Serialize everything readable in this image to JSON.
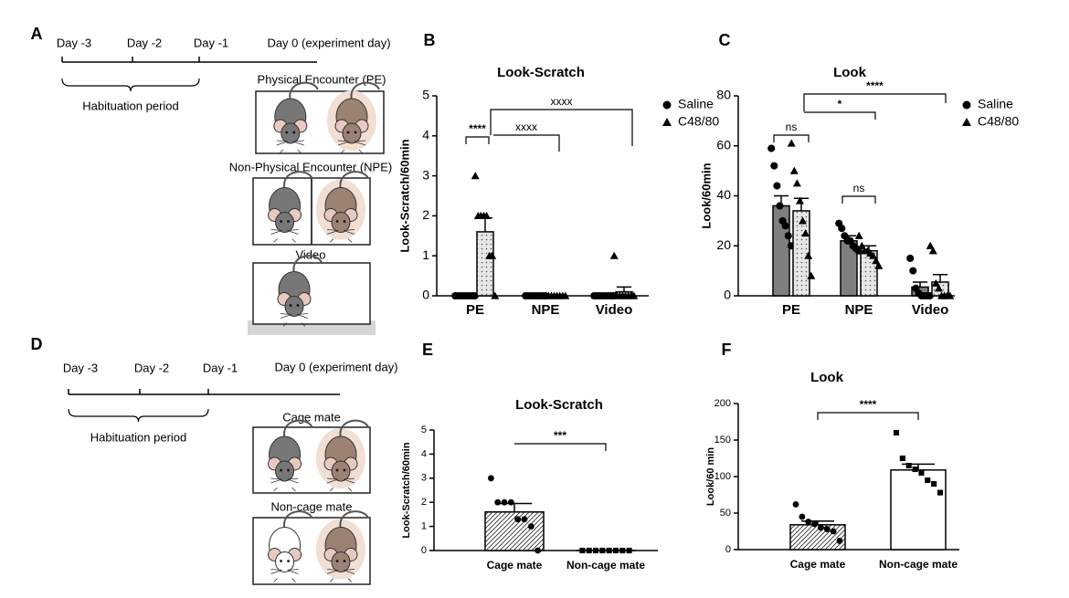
{
  "diagrams": [
    {
      "panel_label": "A",
      "days": [
        "Day -3",
        "Day -2",
        "Day -1"
      ],
      "day0": "Day 0 (experiment day)",
      "period": "Habituation period",
      "conditions": [
        "Physical Encounter (PE)",
        "Non-Physical Encounter (NPE)",
        "Video"
      ]
    },
    {
      "panel_label": "D",
      "days": [
        "Day -3",
        "Day -2",
        "Day -1"
      ],
      "day0": "Day 0 (experiment day)",
      "period": "Habituation period",
      "conditions": [
        "Cage mate",
        "Non-cage mate"
      ]
    }
  ],
  "chart_data": [
    {
      "type": "bar",
      "panel_label": "B",
      "title": "Look-Scratch",
      "ylabel": "Look-Scratch/60min",
      "categories": [
        "PE",
        "NPE",
        "Video"
      ],
      "ylim": [
        0,
        5
      ],
      "yticks": [
        0,
        1,
        2,
        3,
        4,
        5
      ],
      "series": [
        {
          "name": "Saline",
          "color": "#7f7f7f",
          "marker": "circle",
          "values": [
            0,
            0,
            0
          ],
          "errors": [
            0,
            0,
            0
          ],
          "points": [
            [
              0,
              0,
              0,
              0,
              0,
              0,
              0,
              0
            ],
            [
              0,
              0,
              0,
              0,
              0,
              0,
              0,
              0
            ],
            [
              0,
              0,
              0,
              0,
              0,
              0,
              0,
              0
            ]
          ]
        },
        {
          "name": "C48/80",
          "color": "#e6e6e6",
          "pattern": "dots",
          "marker": "triangle",
          "values": [
            1.6,
            0,
            0.1
          ],
          "errors": [
            0.35,
            0,
            0.12
          ],
          "points": [
            [
              3,
              2,
              2,
              2,
              2,
              1,
              1,
              0
            ],
            [
              0,
              0,
              0,
              0,
              0,
              0,
              0,
              0
            ],
            [
              1,
              0,
              0,
              0,
              0,
              0,
              0,
              0
            ]
          ]
        }
      ],
      "annotations": [
        "****",
        "xxxx",
        "xxxx"
      ]
    },
    {
      "type": "bar",
      "panel_label": "C",
      "title": "Look",
      "ylabel": "Look/60min",
      "categories": [
        "PE",
        "NPE",
        "Video"
      ],
      "ylim": [
        0,
        80
      ],
      "yticks": [
        0,
        20,
        40,
        60,
        80
      ],
      "series": [
        {
          "name": "Saline",
          "color": "#7f7f7f",
          "marker": "circle",
          "values": [
            36,
            22,
            3.5
          ],
          "errors": [
            4,
            2,
            2
          ],
          "points": [
            [
              59,
              52,
              44,
              36,
              30,
              28,
              24,
              20
            ],
            [
              29,
              27,
              24,
              22,
              22,
              20,
              19,
              18
            ],
            [
              15,
              10,
              3,
              1,
              0,
              0,
              0,
              0
            ]
          ]
        },
        {
          "name": "C48/80",
          "color": "#e6e6e6",
          "pattern": "dots",
          "marker": "triangle",
          "values": [
            34,
            18,
            5.5
          ],
          "errors": [
            5,
            2,
            3
          ],
          "points": [
            [
              61,
              50,
              45,
              38,
              30,
              25,
              16,
              8
            ],
            [
              24,
              20,
              18,
              18,
              17,
              16,
              14,
              12
            ],
            [
              20,
              18,
              5,
              3,
              0,
              0,
              0,
              0
            ]
          ]
        }
      ],
      "annotations": [
        "ns",
        "*",
        "****",
        "ns"
      ]
    },
    {
      "type": "bar",
      "panel_label": "E",
      "title": "Look-Scratch",
      "ylabel": "Look-Scratch/60min",
      "categories": [
        "Cage mate",
        "Non-cage mate"
      ],
      "ylim": [
        0,
        5
      ],
      "yticks": [
        0,
        1,
        2,
        3,
        4,
        5
      ],
      "values": [
        1.6,
        0
      ],
      "errors": [
        0.35,
        0
      ],
      "points": [
        [
          3,
          2,
          2,
          2,
          1.3,
          1.3,
          1,
          0
        ],
        [
          0,
          0,
          0,
          0,
          0,
          0,
          0,
          0
        ]
      ],
      "colors": [
        "#ffffff",
        "#ffffff"
      ],
      "fills": [
        "hatch",
        "solid"
      ],
      "markers": [
        "circle",
        "square"
      ],
      "annotations": [
        "***"
      ]
    },
    {
      "type": "bar",
      "panel_label": "F",
      "title": "Look",
      "ylabel": "Look/60 min",
      "categories": [
        "Cage mate",
        "Non-cage mate"
      ],
      "ylim": [
        0,
        200
      ],
      "yticks": [
        0,
        50,
        100,
        150,
        200
      ],
      "values": [
        34,
        109
      ],
      "errors": [
        5,
        8
      ],
      "points": [
        [
          62,
          45,
          38,
          35,
          30,
          28,
          25,
          12
        ],
        [
          160,
          125,
          115,
          110,
          105,
          95,
          90,
          78
        ]
      ],
      "colors": [
        "#ffffff",
        "#ffffff"
      ],
      "fills": [
        "hatch",
        "solid"
      ],
      "markers": [
        "circle",
        "square"
      ],
      "annotations": [
        "****"
      ]
    }
  ]
}
